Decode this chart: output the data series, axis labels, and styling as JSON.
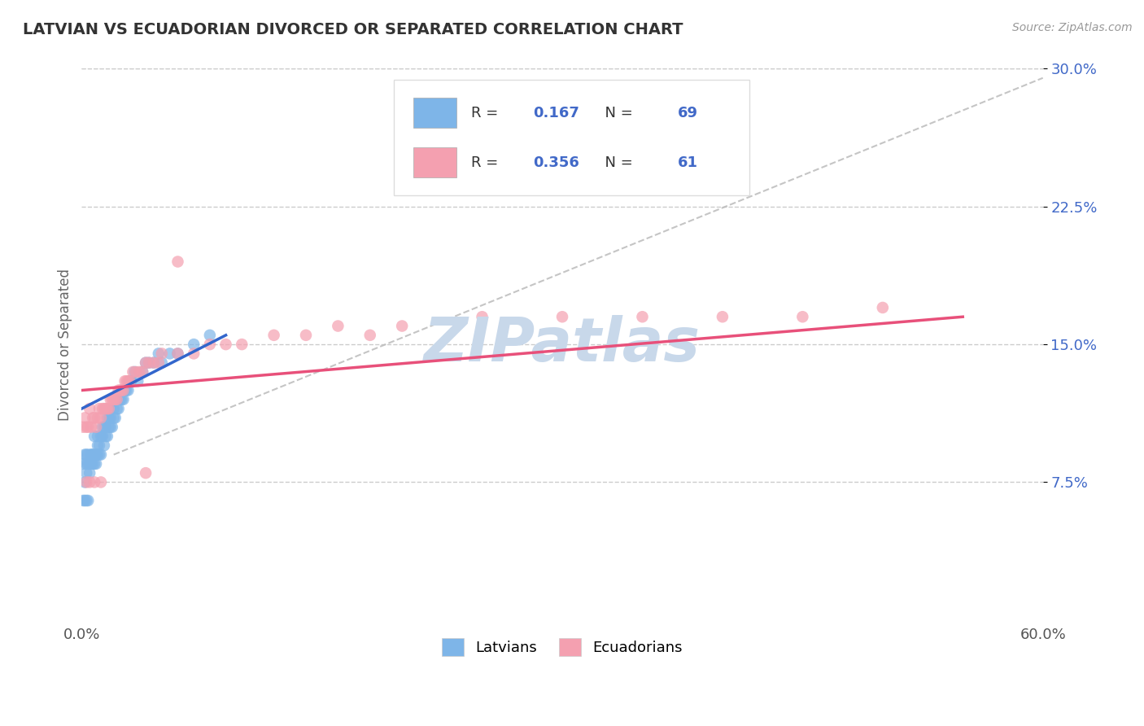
{
  "title": "LATVIAN VS ECUADORIAN DIVORCED OR SEPARATED CORRELATION CHART",
  "source_text": "Source: ZipAtlas.com",
  "ylabel": "Divorced or Separated",
  "xlim": [
    0.0,
    0.6
  ],
  "ylim": [
    0.0,
    0.3
  ],
  "xticks": [
    0.0,
    0.6
  ],
  "xticklabels": [
    "0.0%",
    "60.0%"
  ],
  "yticks": [
    0.075,
    0.15,
    0.225,
    0.3
  ],
  "yticklabels": [
    "7.5%",
    "15.0%",
    "22.5%",
    "30.0%"
  ],
  "latvian_color": "#7EB5E8",
  "ecuadorian_color": "#F4A0B0",
  "latvian_line_color": "#3366CC",
  "ecuadorian_line_color": "#E8507A",
  "gray_line_color": "#BBBBBB",
  "watermark": "ZIPatlas",
  "watermark_color": "#C8D8EA",
  "R_latvian": 0.167,
  "N_latvian": 69,
  "R_ecuadorian": 0.356,
  "N_ecuadorian": 61,
  "legend_latvians": "Latvians",
  "legend_ecuadorians": "Ecuadorians",
  "latvian_x": [
    0.001,
    0.002,
    0.002,
    0.003,
    0.003,
    0.003,
    0.004,
    0.004,
    0.005,
    0.005,
    0.006,
    0.006,
    0.006,
    0.007,
    0.007,
    0.008,
    0.008,
    0.008,
    0.009,
    0.009,
    0.01,
    0.01,
    0.01,
    0.011,
    0.011,
    0.012,
    0.012,
    0.013,
    0.013,
    0.014,
    0.014,
    0.015,
    0.015,
    0.016,
    0.016,
    0.017,
    0.017,
    0.018,
    0.018,
    0.019,
    0.02,
    0.02,
    0.021,
    0.022,
    0.023,
    0.024,
    0.025,
    0.026,
    0.027,
    0.028,
    0.029,
    0.03,
    0.031,
    0.033,
    0.035,
    0.038,
    0.04,
    0.042,
    0.045,
    0.048,
    0.05,
    0.055,
    0.06,
    0.07,
    0.08,
    0.001,
    0.002,
    0.003,
    0.004
  ],
  "latvian_y": [
    0.085,
    0.09,
    0.075,
    0.085,
    0.09,
    0.08,
    0.09,
    0.085,
    0.08,
    0.085,
    0.09,
    0.085,
    0.09,
    0.085,
    0.09,
    0.09,
    0.1,
    0.085,
    0.09,
    0.085,
    0.09,
    0.095,
    0.1,
    0.09,
    0.095,
    0.09,
    0.1,
    0.1,
    0.105,
    0.095,
    0.105,
    0.1,
    0.105,
    0.11,
    0.1,
    0.105,
    0.11,
    0.105,
    0.11,
    0.105,
    0.11,
    0.115,
    0.11,
    0.115,
    0.115,
    0.12,
    0.12,
    0.12,
    0.125,
    0.125,
    0.125,
    0.13,
    0.13,
    0.135,
    0.13,
    0.135,
    0.14,
    0.14,
    0.14,
    0.145,
    0.14,
    0.145,
    0.145,
    0.15,
    0.155,
    0.065,
    0.065,
    0.065,
    0.065
  ],
  "ecuadorian_x": [
    0.001,
    0.002,
    0.003,
    0.004,
    0.005,
    0.006,
    0.007,
    0.008,
    0.009,
    0.01,
    0.011,
    0.012,
    0.013,
    0.014,
    0.015,
    0.016,
    0.017,
    0.018,
    0.019,
    0.02,
    0.021,
    0.022,
    0.023,
    0.024,
    0.025,
    0.026,
    0.027,
    0.028,
    0.029,
    0.03,
    0.032,
    0.034,
    0.036,
    0.038,
    0.04,
    0.042,
    0.045,
    0.048,
    0.05,
    0.06,
    0.07,
    0.08,
    0.09,
    0.1,
    0.12,
    0.14,
    0.16,
    0.18,
    0.2,
    0.25,
    0.3,
    0.35,
    0.4,
    0.45,
    0.5,
    0.003,
    0.005,
    0.008,
    0.012,
    0.04,
    0.06
  ],
  "ecuadorian_y": [
    0.105,
    0.11,
    0.105,
    0.105,
    0.115,
    0.105,
    0.11,
    0.11,
    0.105,
    0.11,
    0.115,
    0.11,
    0.115,
    0.115,
    0.115,
    0.115,
    0.115,
    0.12,
    0.12,
    0.12,
    0.12,
    0.12,
    0.125,
    0.125,
    0.125,
    0.125,
    0.13,
    0.13,
    0.13,
    0.13,
    0.135,
    0.135,
    0.135,
    0.135,
    0.14,
    0.14,
    0.14,
    0.14,
    0.145,
    0.145,
    0.145,
    0.15,
    0.15,
    0.15,
    0.155,
    0.155,
    0.16,
    0.155,
    0.16,
    0.165,
    0.165,
    0.165,
    0.165,
    0.165,
    0.17,
    0.075,
    0.075,
    0.075,
    0.075,
    0.08,
    0.195
  ]
}
